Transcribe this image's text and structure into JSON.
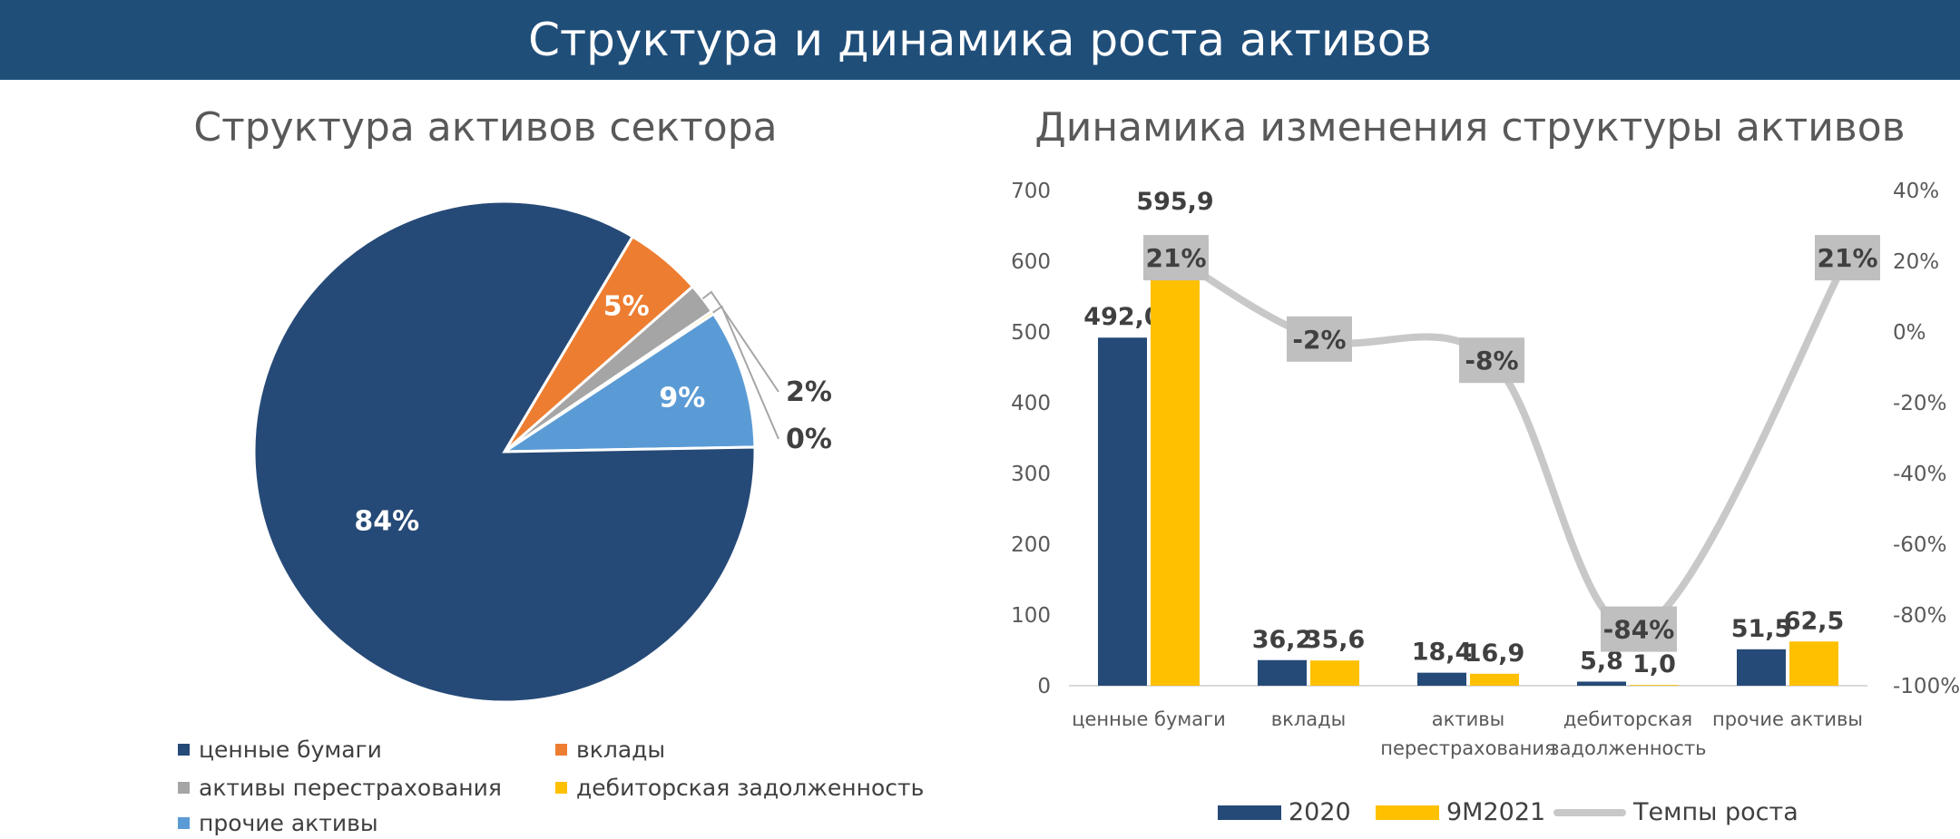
{
  "page": {
    "title": "Структура и динамика роста активов"
  },
  "colors": {
    "banner": "#1f4e79",
    "navy": "#264a77",
    "orange": "#ed7d31",
    "gray": "#a5a5a5",
    "yellow": "#ffc000",
    "lightblue": "#5b9bd5",
    "growth_line": "#c8c8c8"
  },
  "chart_data": [
    {
      "type": "pie",
      "title": "Структура активов сектора",
      "slices": [
        {
          "name": "ценные бумаги",
          "value": 84,
          "label": "84%",
          "color": "#264a77"
        },
        {
          "name": "вклады",
          "value": 5,
          "label": "5%",
          "color": "#ed7d31"
        },
        {
          "name": "активы перестрахования",
          "value": 2,
          "label": "2%",
          "color": "#a5a5a5"
        },
        {
          "name": "дебиторская задолженность",
          "value": 0.2,
          "label": "0%",
          "color": "#ffc000"
        },
        {
          "name": "прочие активы",
          "value": 9,
          "label": "9%",
          "color": "#5b9bd5"
        }
      ],
      "legend_position": "bottom"
    },
    {
      "type": "bar",
      "title": "Динамика изменения структуры активов",
      "categories": [
        "ценные бумаги",
        "вклады",
        "активы перестрахования",
        "дебиторская задолженность",
        "прочие активы"
      ],
      "category_lines": [
        [
          "ценные бумаги"
        ],
        [
          "вклады"
        ],
        [
          "активы",
          "перестрахования"
        ],
        [
          "дебиторская",
          "задолженность"
        ],
        [
          "прочие активы"
        ]
      ],
      "series": [
        {
          "name": "2020",
          "values": [
            492.0,
            36.2,
            18.4,
            5.8,
            51.5
          ],
          "labels": [
            "492,0",
            "36,2",
            "18,4",
            "5,8",
            "51,5"
          ],
          "color": "#264a77"
        },
        {
          "name": "9M2021",
          "values": [
            595.9,
            35.6,
            16.9,
            1.0,
            62.5
          ],
          "labels": [
            "595,9",
            "35,6",
            "16,9",
            "1,0",
            "62,5"
          ],
          "color": "#ffc000"
        }
      ],
      "line_series": {
        "name": "Темпы роста",
        "values": [
          21,
          -2,
          -8,
          -84,
          21
        ],
        "labels": [
          "21%",
          "-2%",
          "-8%",
          "-84%",
          "21%"
        ],
        "color": "#c8c8c8",
        "axis": "right"
      },
      "ylim": [
        0,
        700
      ],
      "yticks": [
        0,
        100,
        200,
        300,
        400,
        500,
        600,
        700
      ],
      "ytick_labels": [
        "0",
        "100",
        "200",
        "300",
        "400",
        "500",
        "600",
        "700"
      ],
      "y2lim": [
        -100,
        40
      ],
      "y2ticks": [
        -100,
        -80,
        -60,
        -40,
        -20,
        0,
        20,
        40
      ],
      "y2tick_labels": [
        "-100%",
        "-80%",
        "-60%",
        "-40%",
        "-20%",
        "0%",
        "20%",
        "40%"
      ],
      "grid": false,
      "legend_position": "bottom"
    }
  ]
}
